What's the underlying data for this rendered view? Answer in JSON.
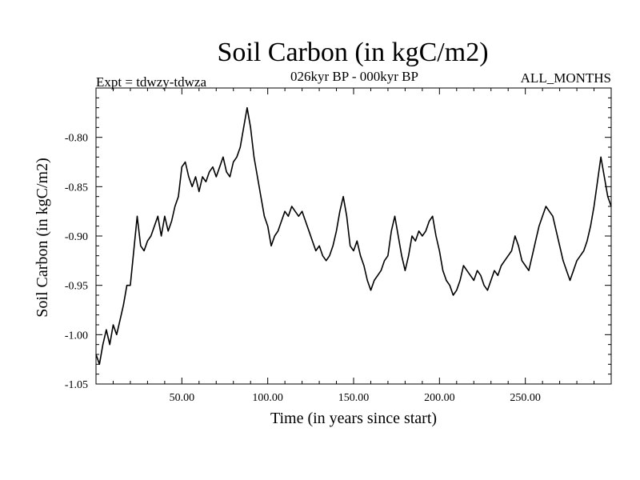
{
  "chart_data": {
    "type": "line",
    "title": "Soil Carbon (in kgC/m2)",
    "subtitle": "026kyr BP - 000kyr BP",
    "left_note": "Expt = tdwzy-tdwza",
    "right_note": "ALL_MONTHS",
    "xlabel": "Time (in years since start)",
    "ylabel": "Soil Carbon (in kgC/m2)",
    "xlim": [
      0,
      300
    ],
    "ylim": [
      -1.05,
      -0.75
    ],
    "xticks": [
      50,
      100,
      150,
      200,
      250
    ],
    "xtick_labels": [
      "50.00",
      "100.00",
      "150.00",
      "200.00",
      "250.00"
    ],
    "yticks": [
      -1.05,
      -1.0,
      -0.95,
      -0.9,
      -0.85,
      -0.8
    ],
    "ytick_labels": [
      "-1.05",
      "-1.00",
      "-0.95",
      "-0.90",
      "-0.85",
      "-0.80"
    ],
    "grid": false,
    "line_color": "#000000",
    "series": [
      {
        "x": [
          0,
          2,
          4,
          6,
          8,
          10,
          12,
          14,
          16,
          18,
          20,
          22,
          24,
          26,
          28,
          30,
          32,
          34,
          36,
          38,
          40,
          42,
          44,
          46,
          48,
          50,
          52,
          54,
          56,
          58,
          60,
          62,
          64,
          66,
          68,
          70,
          72,
          74,
          76,
          78,
          80,
          82,
          84,
          86,
          88,
          90,
          92,
          94,
          96,
          98,
          100,
          102,
          104,
          106,
          108,
          110,
          112,
          114,
          116,
          118,
          120,
          122,
          124,
          126,
          128,
          130,
          132,
          134,
          136,
          138,
          140,
          142,
          144,
          146,
          148,
          150,
          152,
          154,
          156,
          158,
          160,
          162,
          164,
          166,
          168,
          170,
          172,
          174,
          176,
          178,
          180,
          182,
          184,
          186,
          188,
          190,
          192,
          194,
          196,
          198,
          200,
          202,
          204,
          206,
          208,
          210,
          212,
          214,
          216,
          218,
          220,
          222,
          224,
          226,
          228,
          230,
          232,
          234,
          236,
          238,
          240,
          242,
          244,
          246,
          248,
          250,
          252,
          254,
          256,
          258,
          260,
          262,
          264,
          266,
          268,
          270,
          272,
          274,
          276,
          278,
          280,
          282,
          284,
          286,
          288,
          290,
          292,
          294,
          296,
          298,
          300
        ],
        "values": [
          -1.02,
          -1.03,
          -1.01,
          -0.995,
          -1.01,
          -0.99,
          -1.0,
          -0.985,
          -0.97,
          -0.95,
          -0.95,
          -0.915,
          -0.88,
          -0.91,
          -0.915,
          -0.905,
          -0.9,
          -0.89,
          -0.88,
          -0.9,
          -0.88,
          -0.895,
          -0.885,
          -0.87,
          -0.86,
          -0.83,
          -0.825,
          -0.84,
          -0.85,
          -0.84,
          -0.855,
          -0.84,
          -0.845,
          -0.835,
          -0.83,
          -0.84,
          -0.83,
          -0.82,
          -0.835,
          -0.84,
          -0.825,
          -0.82,
          -0.81,
          -0.79,
          -0.77,
          -0.79,
          -0.82,
          -0.84,
          -0.86,
          -0.88,
          -0.89,
          -0.91,
          -0.9,
          -0.895,
          -0.885,
          -0.875,
          -0.88,
          -0.87,
          -0.875,
          -0.88,
          -0.875,
          -0.885,
          -0.895,
          -0.905,
          -0.915,
          -0.91,
          -0.92,
          -0.925,
          -0.92,
          -0.91,
          -0.895,
          -0.875,
          -0.86,
          -0.88,
          -0.91,
          -0.915,
          -0.905,
          -0.92,
          -0.93,
          -0.945,
          -0.955,
          -0.945,
          -0.94,
          -0.935,
          -0.925,
          -0.92,
          -0.895,
          -0.88,
          -0.9,
          -0.92,
          -0.935,
          -0.92,
          -0.9,
          -0.905,
          -0.895,
          -0.9,
          -0.895,
          -0.885,
          -0.88,
          -0.9,
          -0.915,
          -0.935,
          -0.945,
          -0.95,
          -0.96,
          -0.955,
          -0.945,
          -0.93,
          -0.935,
          -0.94,
          -0.945,
          -0.935,
          -0.94,
          -0.95,
          -0.955,
          -0.945,
          -0.935,
          -0.94,
          -0.93,
          -0.925,
          -0.92,
          -0.915,
          -0.9,
          -0.91,
          -0.925,
          -0.93,
          -0.935,
          -0.92,
          -0.905,
          -0.89,
          -0.88,
          -0.87,
          -0.875,
          -0.88,
          -0.895,
          -0.91,
          -0.925,
          -0.935,
          -0.945,
          -0.935,
          -0.925,
          -0.92,
          -0.915,
          -0.905,
          -0.89,
          -0.87,
          -0.845,
          -0.82,
          -0.84,
          -0.86,
          -0.87
        ]
      }
    ]
  }
}
